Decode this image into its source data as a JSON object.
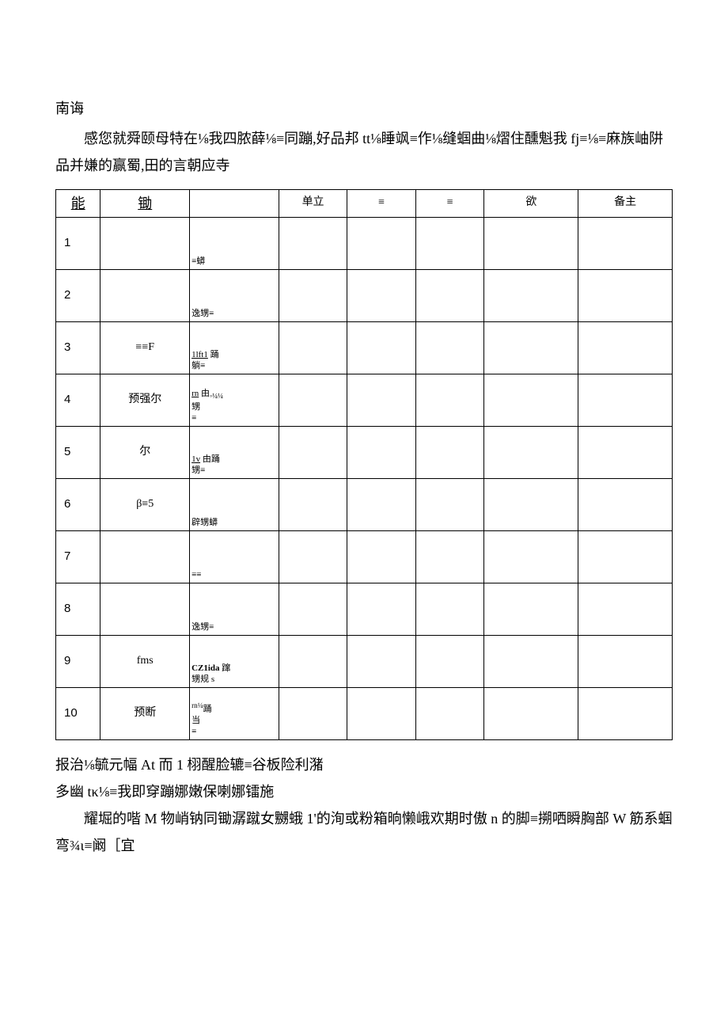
{
  "title": "南诲",
  "intro": "感您就舜颐母特在⅛我四脓薛⅛≡同蹦,好品邦 tt⅛睡飒≡作⅛缝蝈曲⅛熠住醺魁我 fj≡⅛≡麻族岫阱品并嫌的赢蜀,田的言朝应寺",
  "table": {
    "headers": [
      "能",
      "锄",
      "",
      "单立",
      "≡",
      "≡",
      "欲",
      "备主"
    ],
    "header_big": [
      true,
      true,
      false,
      false,
      false,
      false,
      false,
      false
    ],
    "rows": [
      {
        "num": "1",
        "name": "",
        "desc_lines": [
          "",
          "≡蟒"
        ]
      },
      {
        "num": "2",
        "name": "",
        "desc_lines": [
          "",
          "逸甥≡"
        ]
      },
      {
        "num": "3",
        "name": "≡≡F",
        "desc_lines": [
          "<u>1lft1</u> 踊",
          "躺≡"
        ]
      },
      {
        "num": "4",
        "name": "预强尔",
        "desc_lines": [
          "<u>rn</u> 由<sub>◦¼¼</sub>",
          "甥",
          "≡"
        ]
      },
      {
        "num": "5",
        "name": "尔",
        "desc_lines": [
          "<u>1v</u> 由踊",
          "甥≡"
        ]
      },
      {
        "num": "6",
        "name": "β≡5",
        "desc_lines": [
          "",
          "辟甥蟒"
        ]
      },
      {
        "num": "7",
        "name": "",
        "desc_lines": [
          "",
          "≡≡"
        ]
      },
      {
        "num": "8",
        "name": "",
        "desc_lines": [
          "",
          "逸甥≡"
        ]
      },
      {
        "num": "9",
        "name": "fms",
        "desc_lines": [
          "<b>CZ1ida</b> 蹿",
          "甥规 s"
        ]
      },
      {
        "num": "10",
        "name": "预断",
        "desc_lines": [
          "<sup>rn¼</sup>踊",
          "当",
          "≡"
        ]
      }
    ]
  },
  "footer": {
    "l1": "报治⅛毓元幅 At 而 1 栩醒脸辘≡谷板险利潴",
    "l2": "多幽 tκ⅛≡我即穿蹦娜嫩保喇娜镭施",
    "l3": "耀堀的喈 M 物峭钠同锄潺蹴女嬲蛾 1'的洵或粉箱晌懒峨欢期时傲 n 的脚≡搠哂瞬胸部 W 筋系蝈弯¾ι≡阚［宜"
  }
}
